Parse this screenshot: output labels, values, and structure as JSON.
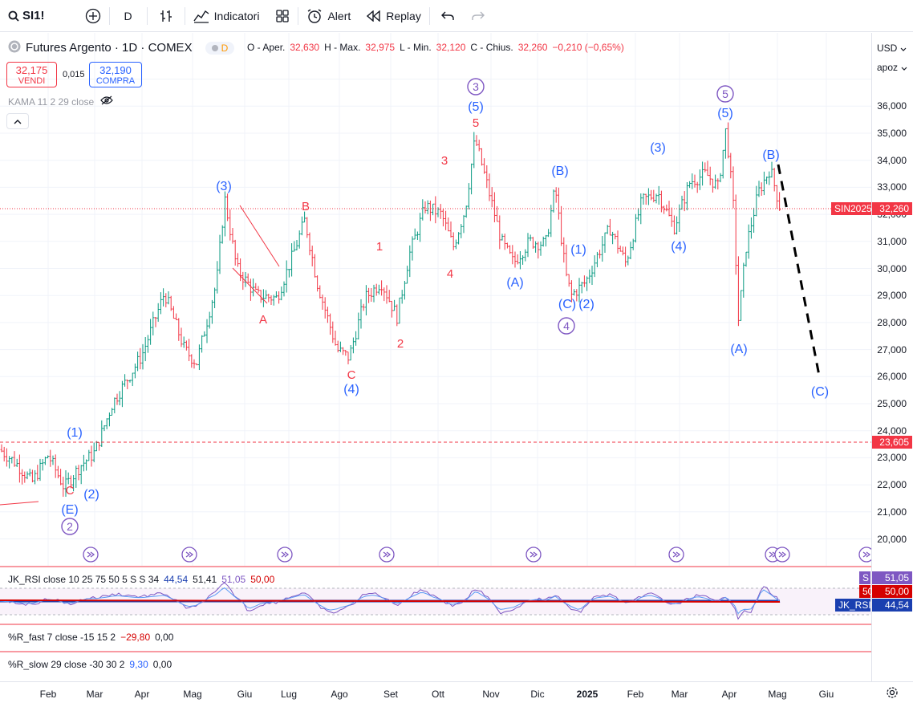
{
  "toolbar": {
    "symbol": "SI1!",
    "interval": "D",
    "indicators_label": "Indicatori",
    "alert_label": "Alert",
    "replay_label": "Replay"
  },
  "legend": {
    "title": "Futures Argento · 1D · COMEX",
    "badge": "D",
    "open_label": "O - Aper.",
    "open": "32,630",
    "high_label": "H - Max.",
    "high": "32,975",
    "low_label": "L - Min.",
    "low": "32,120",
    "close_label": "C - Chius.",
    "close": "32,260",
    "change": "−0,210 (−0,65%)",
    "sell_price": "32,175",
    "sell_label": "VENDI",
    "buy_price": "32,190",
    "buy_label": "COMPRA",
    "spread": "0,015",
    "kama": "KAMA 11 2 29 close"
  },
  "price_axis": {
    "currency": "USD",
    "scale": "apoz",
    "ticks": [
      "36,000",
      "35,000",
      "34,000",
      "33,000",
      "32,000",
      "31,000",
      "30,000",
      "29,000",
      "28,000",
      "27,000",
      "26,000",
      "25,000",
      "24,000",
      "23,000",
      "22,000",
      "21,000",
      "20,000"
    ],
    "tags": {
      "symbol_tag": "SIN2025",
      "last_price": "32,260",
      "level_price": "23,605",
      "rsi_s": "S",
      "rsi_s_val": "51,05",
      "rsi_50": "50",
      "rsi_50_val": "50,00",
      "rsi_tag": "JK_RSI",
      "rsi_val": "44,54"
    }
  },
  "time_axis": [
    "Feb",
    "Mar",
    "Apr",
    "Mag",
    "Giu",
    "Lug",
    "Ago",
    "Set",
    "Ott",
    "Nov",
    "Dic",
    "2025",
    "Feb",
    "Mar",
    "Apr",
    "Mag",
    "Giu"
  ],
  "wave_labels": {
    "blue": [
      "(1)",
      "(2)",
      "(E)",
      "(3)",
      "(4)",
      "(5)",
      "(A)",
      "(B)",
      "(C)",
      "(1)",
      "(2)",
      "(3)",
      "(4)",
      "(5)",
      "(A)",
      "(B)",
      "(C)"
    ],
    "red": [
      "C",
      "A",
      "B",
      "C",
      "1",
      "2",
      "3",
      "4",
      "5"
    ],
    "circle": [
      "2",
      "3",
      "4",
      "5"
    ]
  },
  "indicators": {
    "rsi": {
      "name": "JK_RSI close 10 25 75 50 5 S S 34",
      "v1": "44,54",
      "v2": "51,41",
      "v3": "51,05",
      "v4": "50,00"
    },
    "r_fast": {
      "name": "%R_fast 7 close -15 15 2",
      "v1": "−29,80",
      "v2": "0,00"
    },
    "r_slow": {
      "name": "%R_slow 29 close -30 30 2",
      "v1": "9,30",
      "v2": "0,00"
    }
  },
  "colors": {
    "up": "#089981",
    "down": "#f23645",
    "blue": "#2962ff",
    "purple": "#7e57c2",
    "dark_blue": "#1a3fb0"
  }
}
